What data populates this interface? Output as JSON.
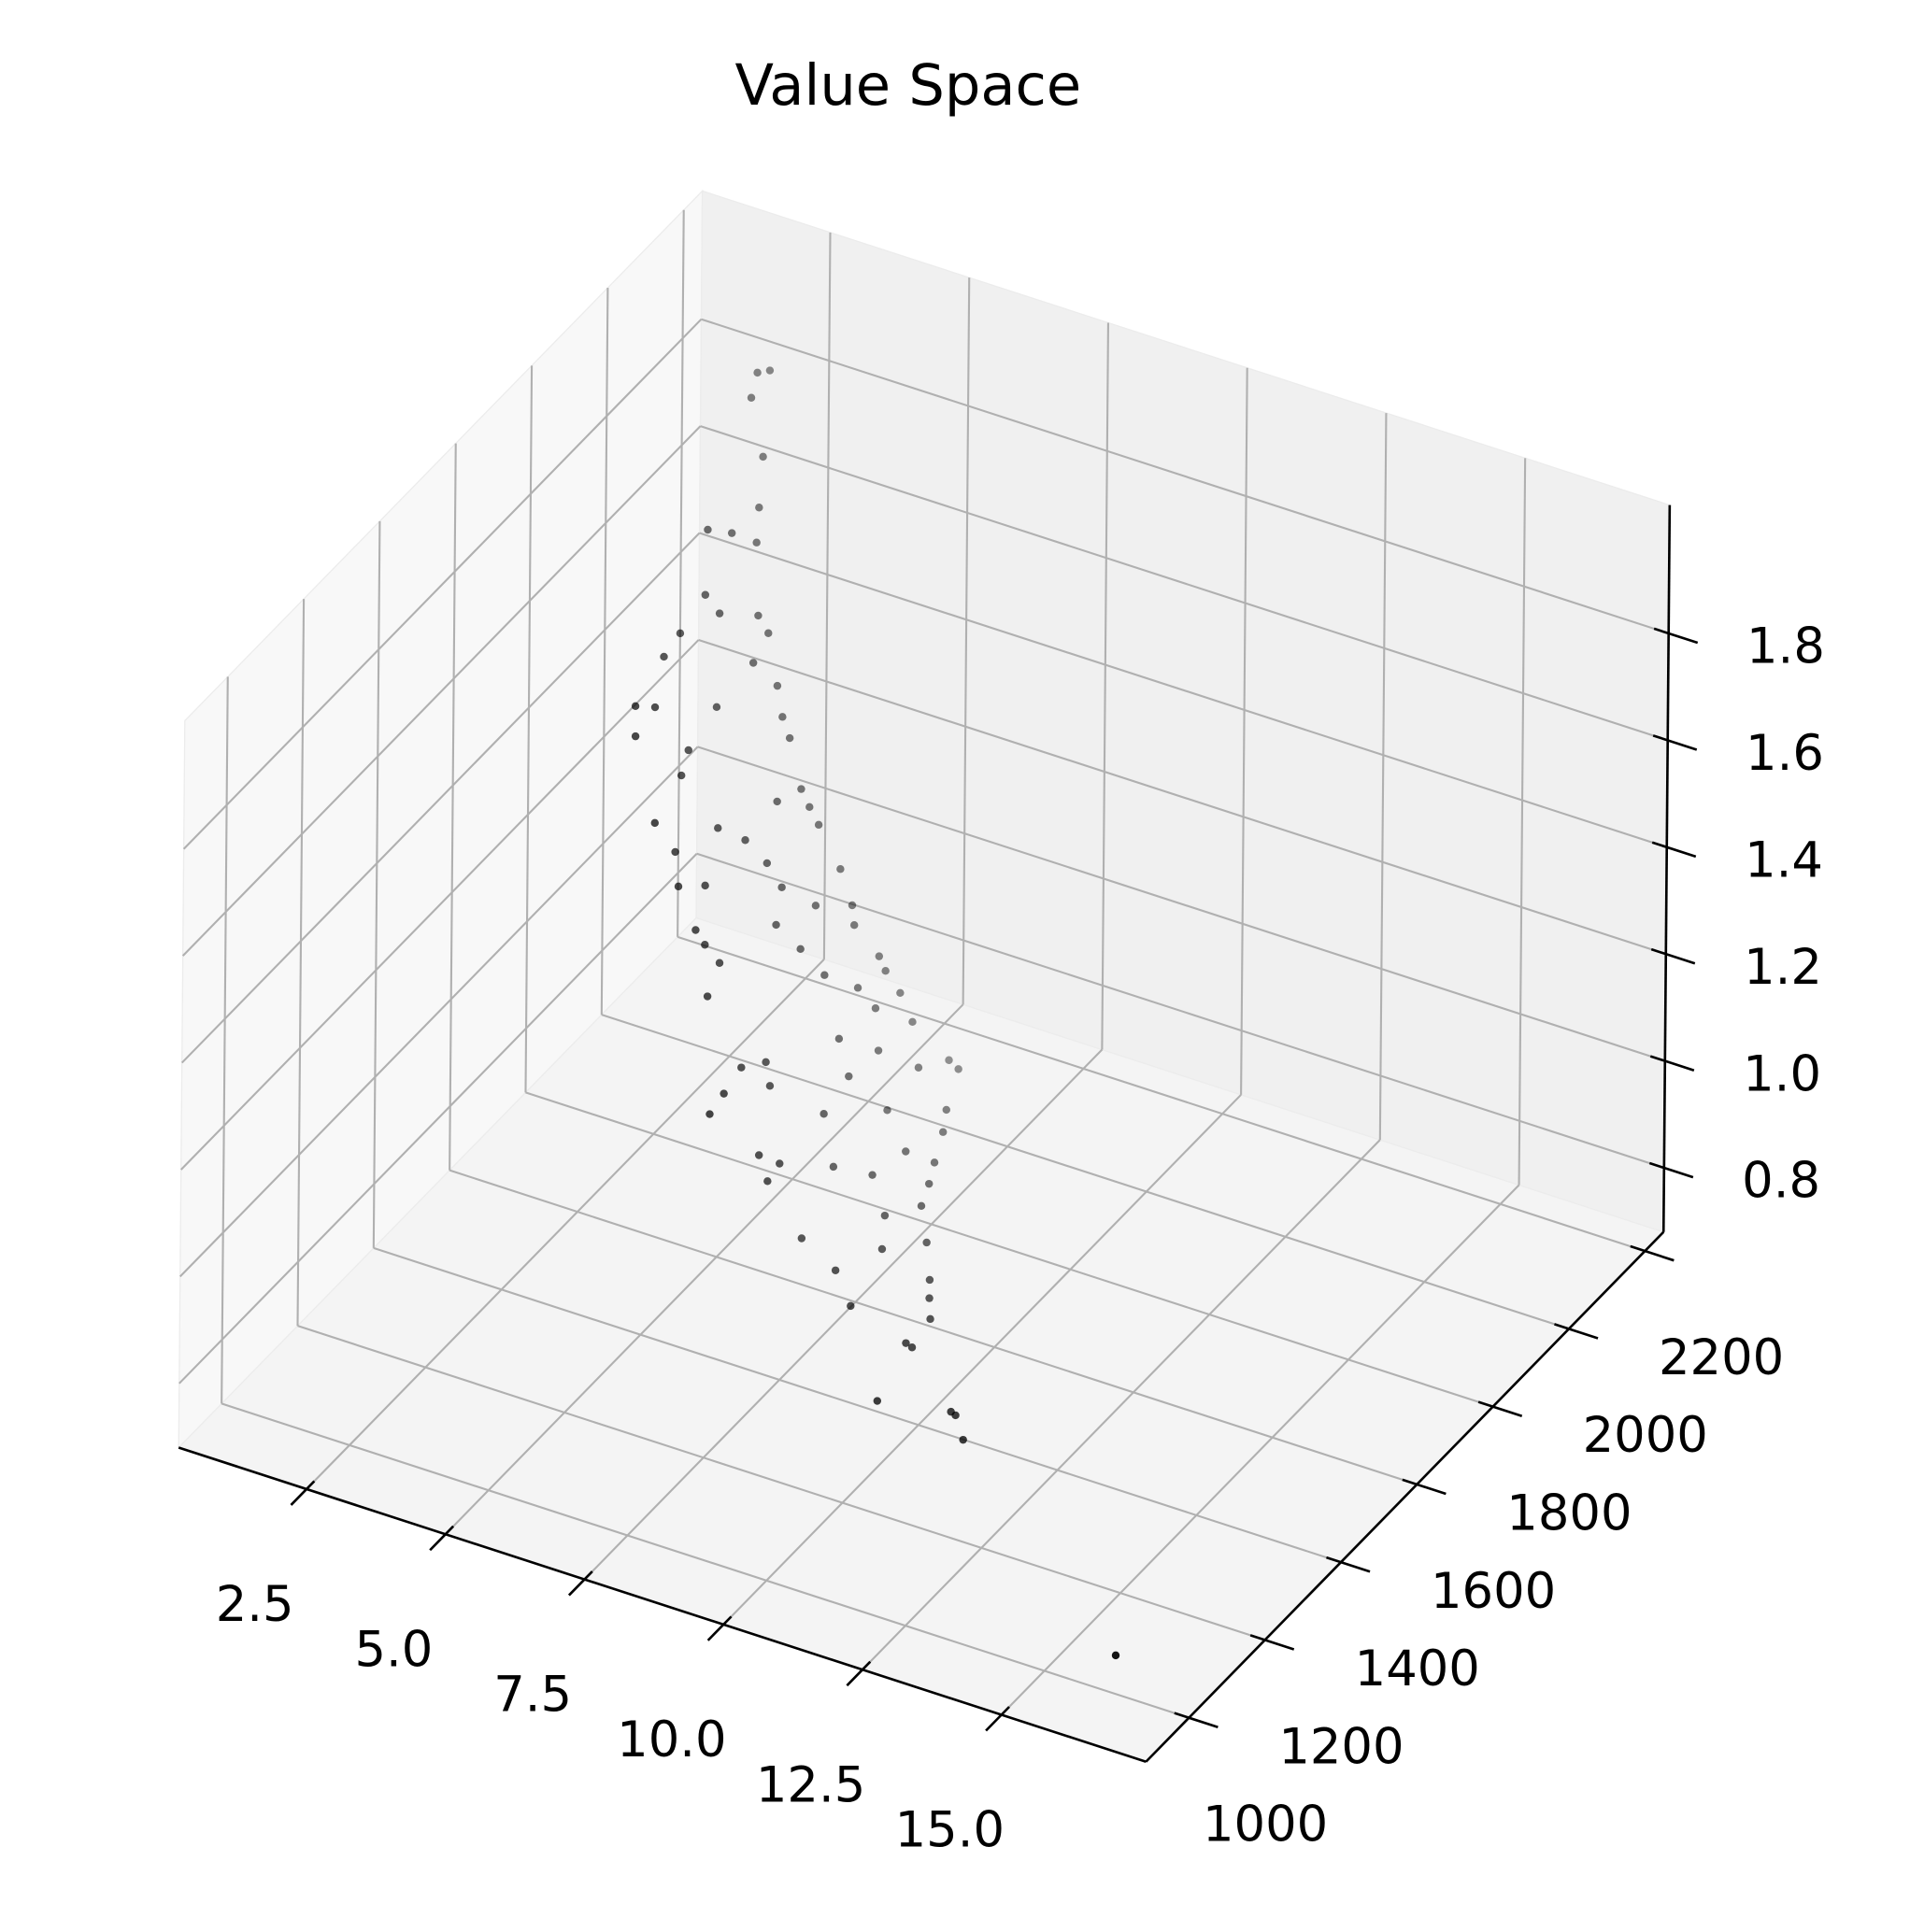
{
  "chart_data": {
    "type": "scatter",
    "title": "Value Space",
    "color": "#000000",
    "grid": true,
    "x": [
      2.81,
      2.81,
      2.92,
      3.16,
      3.36,
      3.45,
      3.47,
      3.51,
      3.72,
      3.81,
      3.8,
      3.89,
      3.89,
      3.98,
      4.01,
      4.08,
      4.18,
      4.18,
      4.17,
      4.21,
      4.3,
      4.36,
      4.31,
      4.46,
      4.51,
      4.56,
      4.58,
      4.66,
      4.67,
      4.71,
      4.66,
      4.76,
      4.82,
      4.84,
      4.91,
      4.91,
      4.92,
      4.99,
      4.99,
      5.09,
      5.06,
      5.07,
      5.13,
      5.15,
      5.19,
      5.22,
      5.26,
      5.26,
      5.32,
      5.36,
      5.33,
      5.41,
      5.46,
      5.53,
      5.59,
      5.62,
      5.94,
      5.64,
      5.62,
      5.67,
      5.94,
      5.75,
      5.71,
      5.83,
      5.83,
      5.94,
      6.46,
      6.64,
      5.99,
      6.03,
      6.03,
      6.46,
      6.93,
      6.1,
      6.46,
      7.14,
      7.33,
      6.96,
      6.41,
      7.51,
      7.89,
      7.3,
      8.43,
      7.84,
      8.67,
      8.96,
      9.02,
      9.09,
      9.4,
      10.48,
      10.59,
      11.02,
      15.98
    ],
    "y": [
      2013,
      2046,
      1981,
      1978,
      1939,
      1790,
      1851,
      1911,
      1745,
      1770,
      1874,
      1888,
      1654,
      1598,
      1831,
      1885,
      1494,
      1546,
      1711,
      1880,
      1477,
      1609,
      1885,
      1576,
      1887,
      1816,
      1899,
      1477,
      1643,
      1710,
      1912,
      1517,
      1752,
      1944,
      1504,
      1575,
      1777,
      1857,
      1954,
      1524,
      1742,
      1948,
      1543,
      1794,
      1997,
      1569,
      1842,
      2004,
      1922,
      1517,
      2033,
      1956,
      2047,
      1842,
      1938,
      2121,
      2099,
      1567,
      1635,
      1848,
      1993,
      1505,
      1633,
      1456,
      1759,
      1911,
      1991,
      1956,
      1564,
      1613,
      1756,
      1884,
      1891,
      1571,
      1796,
      1846,
      1798,
      1756,
      1617,
      1668,
      1730,
      1576,
      1659,
      1537,
      1623,
      1583,
      1510,
      1516,
      1379,
      1415,
      1411,
      1368,
      1044
    ],
    "z": [
      1.96,
      1.94,
      1.94,
      1.84,
      1.78,
      1.85,
      1.8,
      1.74,
      1.77,
      1.72,
      1.64,
      1.6,
      1.77,
      1.77,
      1.59,
      1.51,
      1.76,
      1.72,
      1.6,
      1.46,
      1.72,
      1.6,
      1.42,
      1.58,
      1.33,
      1.36,
      1.29,
      1.57,
      1.44,
      1.37,
      1.25,
      1.49,
      1.3,
      1.15,
      1.44,
      1.39,
      1.24,
      1.15,
      1.08,
      1.35,
      1.2,
      1.05,
      1.31,
      1.12,
      0.96,
      1.26,
      1.04,
      0.93,
      0.96,
      1.24,
      0.87,
      0.9,
      0.81,
      0.93,
      0.84,
      0.69,
      0.7,
      1.08,
      1.04,
      0.86,
      0.78,
      1.08,
      1.0,
      1.08,
      0.86,
      0.76,
      0.72,
      0.71,
      0.93,
      0.88,
      0.77,
      0.72,
      0.71,
      0.88,
      0.74,
      0.71,
      0.71,
      0.71,
      0.75,
      0.73,
      0.71,
      0.75,
      0.71,
      0.73,
      0.71,
      0.71,
      0.72,
      0.71,
      0.72,
      0.71,
      0.71,
      0.71,
      0.71
    ],
    "xlim": [
      0.2,
      17.6
    ],
    "ylim": [
      887,
      2249
    ],
    "zlim": [
      0.68,
      2.04
    ],
    "xticks": [
      2.5,
      {
        "value": 5,
        "label": "5.0"
      },
      7.5,
      {
        "value": 10,
        "label": "10.0"
      },
      12.5,
      {
        "value": 15,
        "label": "15.0"
      }
    ],
    "yticks": [
      1000,
      1200,
      1400,
      1600,
      1800,
      2000,
      2200
    ],
    "zticks": [
      0.8,
      {
        "value": 1,
        "label": "1.0"
      },
      1.2,
      1.4,
      1.6,
      1.8
    ]
  }
}
